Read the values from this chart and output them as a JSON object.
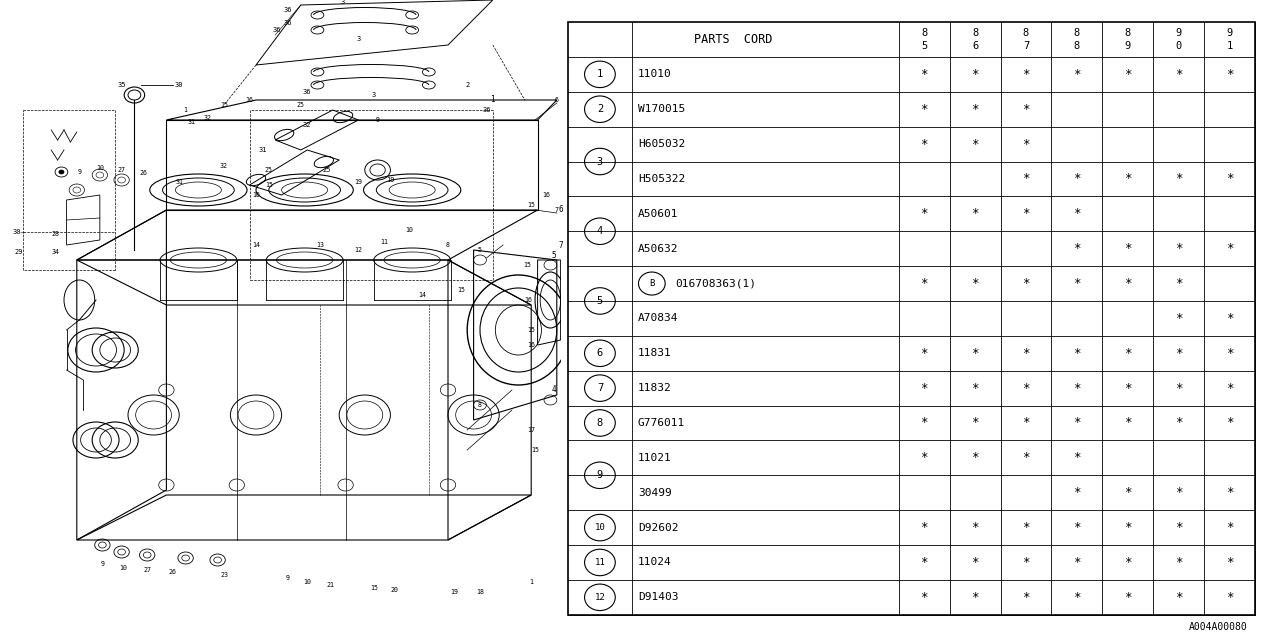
{
  "ref_code": "A004A00080",
  "table": {
    "header_col": "PARTS  CORD",
    "year_cols": [
      "8\n5",
      "8\n6",
      "8\n7",
      "8\n8",
      "8\n9",
      "9\n0",
      "9\n1"
    ],
    "rows": [
      {
        "part": "11010",
        "bold_B": false,
        "marks": [
          1,
          1,
          1,
          1,
          1,
          1,
          1
        ]
      },
      {
        "part": "W170015",
        "bold_B": false,
        "marks": [
          1,
          1,
          1,
          0,
          0,
          0,
          0
        ]
      },
      {
        "part": "H605032",
        "bold_B": false,
        "marks": [
          1,
          1,
          1,
          0,
          0,
          0,
          0
        ]
      },
      {
        "part": "H505322",
        "bold_B": false,
        "marks": [
          0,
          0,
          1,
          1,
          1,
          1,
          1
        ]
      },
      {
        "part": "A50601",
        "bold_B": false,
        "marks": [
          1,
          1,
          1,
          1,
          0,
          0,
          0
        ]
      },
      {
        "part": "A50632",
        "bold_B": false,
        "marks": [
          0,
          0,
          0,
          1,
          1,
          1,
          1
        ]
      },
      {
        "part": "016708363(1)",
        "bold_B": true,
        "marks": [
          1,
          1,
          1,
          1,
          1,
          1,
          0
        ]
      },
      {
        "part": "A70834",
        "bold_B": false,
        "marks": [
          0,
          0,
          0,
          0,
          0,
          1,
          1
        ]
      },
      {
        "part": "11831",
        "bold_B": false,
        "marks": [
          1,
          1,
          1,
          1,
          1,
          1,
          1
        ]
      },
      {
        "part": "11832",
        "bold_B": false,
        "marks": [
          1,
          1,
          1,
          1,
          1,
          1,
          1
        ]
      },
      {
        "part": "G776011",
        "bold_B": false,
        "marks": [
          1,
          1,
          1,
          1,
          1,
          1,
          1
        ]
      },
      {
        "part": "11021",
        "bold_B": false,
        "marks": [
          1,
          1,
          1,
          1,
          0,
          0,
          0
        ]
      },
      {
        "part": "30499",
        "bold_B": false,
        "marks": [
          0,
          0,
          0,
          1,
          1,
          1,
          1
        ]
      },
      {
        "part": "D92602",
        "bold_B": false,
        "marks": [
          1,
          1,
          1,
          1,
          1,
          1,
          1
        ]
      },
      {
        "part": "11024",
        "bold_B": false,
        "marks": [
          1,
          1,
          1,
          1,
          1,
          1,
          1
        ]
      },
      {
        "part": "D91403",
        "bold_B": false,
        "marks": [
          1,
          1,
          1,
          1,
          1,
          1,
          1
        ]
      }
    ],
    "row_groups": [
      {
        "label": "1",
        "rows": [
          0
        ]
      },
      {
        "label": "2",
        "rows": [
          1
        ]
      },
      {
        "label": "3",
        "rows": [
          2,
          3
        ]
      },
      {
        "label": "4",
        "rows": [
          4,
          5
        ]
      },
      {
        "label": "5",
        "rows": [
          6,
          7
        ]
      },
      {
        "label": "6",
        "rows": [
          8
        ]
      },
      {
        "label": "7",
        "rows": [
          9
        ]
      },
      {
        "label": "8",
        "rows": [
          10
        ]
      },
      {
        "label": "9",
        "rows": [
          11,
          12
        ]
      },
      {
        "label": "10",
        "rows": [
          13
        ]
      },
      {
        "label": "11",
        "rows": [
          14
        ]
      },
      {
        "label": "12",
        "rows": [
          15
        ]
      }
    ]
  },
  "bg_color": "#ffffff",
  "lc": "#000000"
}
